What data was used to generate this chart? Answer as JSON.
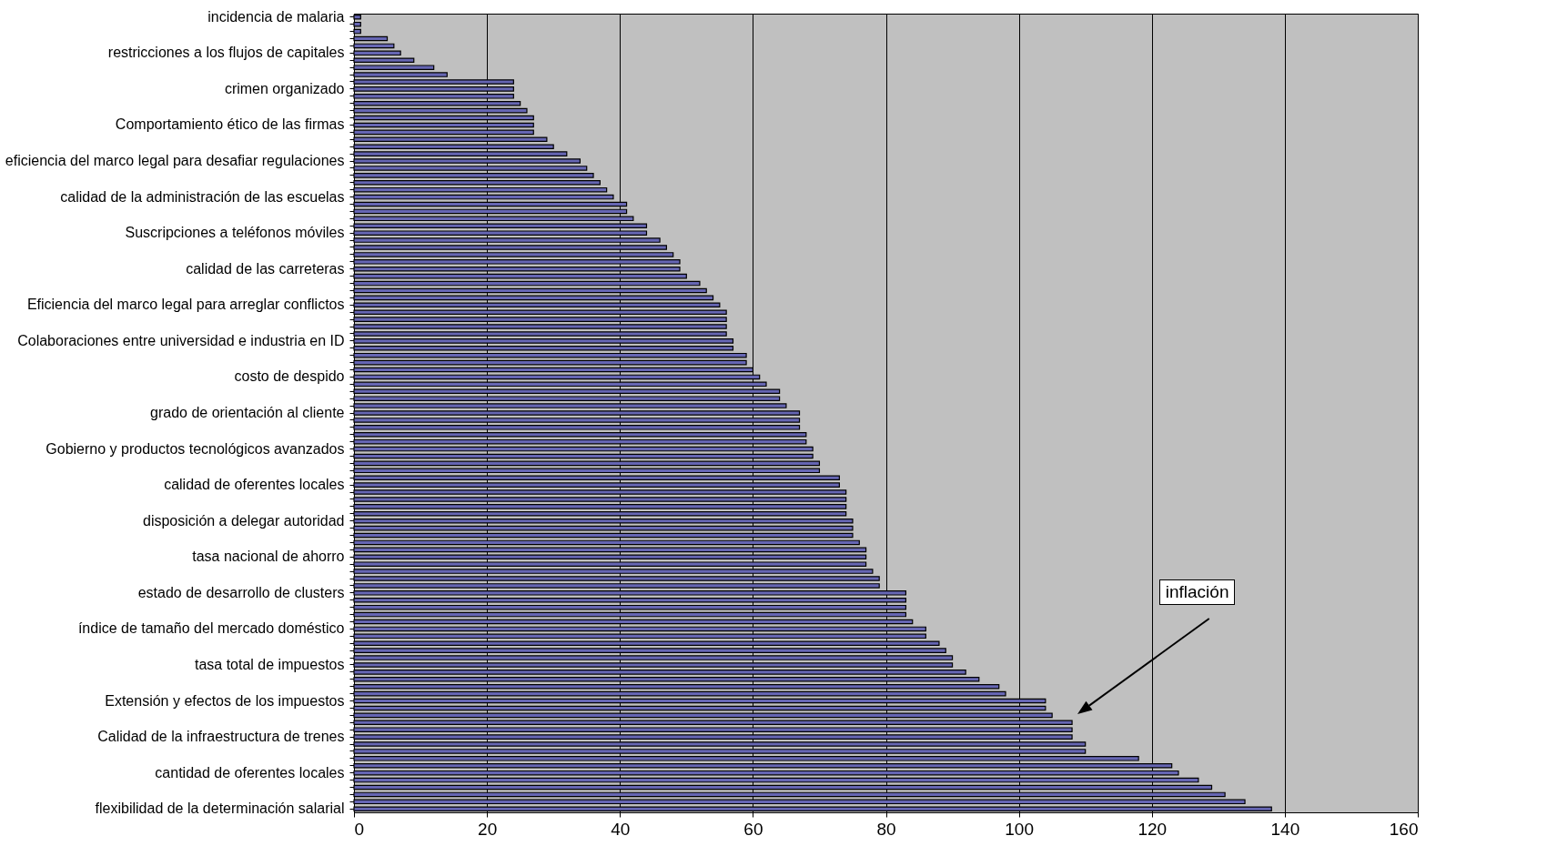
{
  "chart_data": {
    "type": "bar",
    "orientation": "horizontal",
    "categories": [
      "incidencia de malaria",
      null,
      null,
      null,
      null,
      "restricciones a los flujos de capitales",
      null,
      null,
      null,
      null,
      "crimen organizado",
      null,
      null,
      null,
      null,
      "Comportamiento ético de las firmas",
      null,
      null,
      null,
      null,
      "eficiencia del marco legal para desafiar regulaciones",
      null,
      null,
      null,
      null,
      "calidad de la administración de las escuelas",
      null,
      null,
      null,
      null,
      "Suscripciones a teléfonos móviles",
      null,
      null,
      null,
      null,
      "calidad de las carreteras",
      null,
      null,
      null,
      null,
      "Eficiencia del marco legal para arreglar conflictos",
      null,
      null,
      null,
      null,
      "Colaboraciones entre universidad e industria  en ID",
      null,
      null,
      null,
      null,
      "costo de despido",
      null,
      null,
      null,
      null,
      "grado de orientación al cliente",
      null,
      null,
      null,
      null,
      "Gobierno y productos tecnológicos avanzados",
      null,
      null,
      null,
      null,
      "calidad de oferentes locales",
      null,
      null,
      null,
      null,
      "disposición a delegar autoridad",
      null,
      null,
      null,
      null,
      "tasa nacional de ahorro",
      null,
      null,
      null,
      null,
      "estado de desarrollo de clusters",
      null,
      null,
      null,
      null,
      "índice de tamaño del mercado doméstico",
      null,
      null,
      null,
      null,
      "tasa total de impuestos",
      null,
      null,
      null,
      null,
      "Extensión y efectos de los impuestos",
      null,
      null,
      null,
      null,
      "Calidad de la infraestructura de trenes",
      null,
      null,
      null,
      null,
      "cantidad de oferentes locales",
      null,
      null,
      null,
      null,
      "flexibilidad de la determinación salarial"
    ],
    "values": [
      1,
      1,
      1,
      5,
      6,
      7,
      9,
      12,
      14,
      24,
      24,
      24,
      25,
      26,
      27,
      27,
      27,
      29,
      30,
      32,
      34,
      35,
      36,
      37,
      38,
      39,
      41,
      41,
      42,
      44,
      44,
      46,
      47,
      48,
      49,
      49,
      50,
      52,
      53,
      54,
      55,
      56,
      56,
      56,
      56,
      57,
      57,
      59,
      59,
      60,
      61,
      62,
      64,
      64,
      65,
      67,
      67,
      67,
      68,
      68,
      69,
      69,
      70,
      70,
      73,
      73,
      74,
      74,
      74,
      74,
      75,
      75,
      75,
      76,
      77,
      77,
      77,
      78,
      79,
      79,
      83,
      83,
      83,
      83,
      84,
      86,
      86,
      88,
      89,
      90,
      90,
      92,
      94,
      97,
      98,
      104,
      104,
      105,
      108,
      108,
      108,
      110,
      110,
      118,
      123,
      124,
      127,
      129,
      131,
      134,
      138
    ],
    "color": "#6666b3",
    "xlim": [
      0,
      160
    ],
    "xticks": [
      0,
      20,
      40,
      60,
      80,
      100,
      120,
      140,
      160
    ],
    "grid": "x",
    "annotations": [
      "inflación"
    ]
  }
}
